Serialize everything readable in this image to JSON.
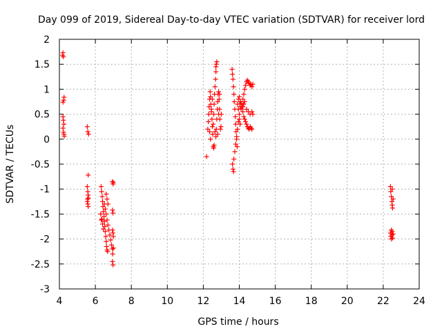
{
  "chart_data": {
    "type": "scatter",
    "title": "Day 099 of 2019, Sidereal Day-to-day VTEC variation (SDTVAR) for receiver lord",
    "xlabel": "GPS time / hours",
    "ylabel": "SDTVAR / TECUs",
    "xlim": [
      4,
      24
    ],
    "ylim": [
      -3,
      2
    ],
    "xticks": [
      "4",
      "6",
      "8",
      "10",
      "12",
      "14",
      "16",
      "18",
      "20",
      "22",
      "24"
    ],
    "yticks": [
      "2",
      "1.5",
      "1",
      "0.5",
      "0",
      "-0.5",
      "-1",
      "-1.5",
      "-2",
      "-2.5",
      "-3"
    ],
    "grid": true,
    "marker": "+",
    "marker_color": "#ff0000",
    "series": [
      {
        "name": "SDTVAR",
        "points": [
          [
            4.18,
            1.68
          ],
          [
            4.2,
            1.73
          ],
          [
            4.22,
            1.65
          ],
          [
            4.2,
            0.74
          ],
          [
            4.24,
            0.78
          ],
          [
            4.26,
            0.84
          ],
          [
            4.2,
            0.45
          ],
          [
            4.22,
            0.38
          ],
          [
            4.25,
            0.3
          ],
          [
            4.2,
            0.22
          ],
          [
            4.23,
            0.14
          ],
          [
            4.25,
            0.1
          ],
          [
            4.27,
            0.06
          ],
          [
            5.55,
            0.25
          ],
          [
            5.58,
            0.15
          ],
          [
            5.62,
            0.1
          ],
          [
            5.6,
            -0.72
          ],
          [
            5.55,
            -0.95
          ],
          [
            5.58,
            -1.05
          ],
          [
            5.6,
            -1.12
          ],
          [
            5.62,
            -1.18
          ],
          [
            5.55,
            -1.25
          ],
          [
            5.58,
            -1.3
          ],
          [
            5.6,
            -1.35
          ],
          [
            5.56,
            -1.2
          ],
          [
            6.32,
            -0.95
          ],
          [
            6.35,
            -1.05
          ],
          [
            6.38,
            -1.15
          ],
          [
            6.4,
            -1.25
          ],
          [
            6.42,
            -1.35
          ],
          [
            6.45,
            -1.45
          ],
          [
            6.48,
            -1.55
          ],
          [
            6.5,
            -1.65
          ],
          [
            6.52,
            -1.75
          ],
          [
            6.55,
            -1.85
          ],
          [
            6.58,
            -1.95
          ],
          [
            6.6,
            -2.05
          ],
          [
            6.62,
            -2.15
          ],
          [
            6.65,
            -2.22
          ],
          [
            6.68,
            -2.25
          ],
          [
            6.36,
            -1.6
          ],
          [
            6.4,
            -1.7
          ],
          [
            6.44,
            -1.8
          ],
          [
            6.5,
            -1.3
          ],
          [
            6.55,
            -1.4
          ],
          [
            6.6,
            -1.5
          ],
          [
            6.65,
            -1.62
          ],
          [
            6.7,
            -1.72
          ],
          [
            6.75,
            -1.82
          ],
          [
            6.8,
            -1.92
          ],
          [
            6.85,
            -2.02
          ],
          [
            6.9,
            -2.12
          ],
          [
            6.95,
            -2.2
          ],
          [
            7.0,
            -2.18
          ],
          [
            6.6,
            -1.1
          ],
          [
            6.65,
            -1.2
          ],
          [
            6.7,
            -1.3
          ],
          [
            6.3,
            -1.5
          ],
          [
            6.33,
            -1.62
          ],
          [
            6.95,
            -0.85
          ],
          [
            6.98,
            -0.9
          ],
          [
            7.0,
            -0.87
          ],
          [
            6.95,
            -1.42
          ],
          [
            6.98,
            -1.48
          ],
          [
            6.95,
            -1.82
          ],
          [
            6.98,
            -1.88
          ],
          [
            7.0,
            -1.95
          ],
          [
            6.95,
            -2.45
          ],
          [
            6.98,
            -2.52
          ],
          [
            6.96,
            -2.3
          ],
          [
            12.18,
            -0.35
          ],
          [
            12.25,
            0.2
          ],
          [
            12.28,
            0.35
          ],
          [
            12.3,
            0.5
          ],
          [
            12.32,
            0.65
          ],
          [
            12.35,
            0.8
          ],
          [
            12.38,
            0.95
          ],
          [
            12.4,
            0.85
          ],
          [
            12.42,
            0.7
          ],
          [
            12.45,
            0.55
          ],
          [
            12.48,
            0.4
          ],
          [
            12.5,
            0.25
          ],
          [
            12.52,
            0.1
          ],
          [
            12.55,
            -0.15
          ],
          [
            12.58,
            -0.18
          ],
          [
            12.6,
            -0.12
          ],
          [
            12.55,
            0.3
          ],
          [
            12.58,
            0.5
          ],
          [
            12.6,
            0.7
          ],
          [
            12.62,
            0.9
          ],
          [
            12.65,
            1.05
          ],
          [
            12.68,
            1.2
          ],
          [
            12.7,
            1.35
          ],
          [
            12.72,
            1.5
          ],
          [
            12.75,
            1.55
          ],
          [
            12.7,
            1.45
          ],
          [
            12.72,
            0.2
          ],
          [
            12.75,
            0.4
          ],
          [
            12.78,
            0.6
          ],
          [
            12.8,
            0.75
          ],
          [
            12.82,
            0.9
          ],
          [
            12.85,
            0.95
          ],
          [
            12.88,
            0.8
          ],
          [
            12.9,
            0.6
          ],
          [
            12.92,
            0.4
          ],
          [
            12.95,
            0.2
          ],
          [
            12.98,
            0.25
          ],
          [
            13.0,
            0.5
          ],
          [
            12.65,
            0.15
          ],
          [
            12.7,
            0.05
          ],
          [
            12.8,
            0.1
          ],
          [
            12.35,
            0.15
          ],
          [
            12.4,
            0.0
          ],
          [
            12.45,
            0.6
          ],
          [
            12.5,
            0.8
          ],
          [
            12.85,
            0.5
          ],
          [
            12.9,
            0.9
          ],
          [
            13.6,
            1.4
          ],
          [
            13.62,
            1.3
          ],
          [
            13.65,
            1.2
          ],
          [
            13.68,
            1.05
          ],
          [
            13.7,
            0.9
          ],
          [
            13.72,
            0.75
          ],
          [
            13.75,
            0.6
          ],
          [
            13.78,
            0.45
          ],
          [
            13.8,
            0.3
          ],
          [
            13.82,
            0.15
          ],
          [
            13.85,
            0.0
          ],
          [
            13.88,
            -0.15
          ],
          [
            13.62,
            -0.5
          ],
          [
            13.65,
            -0.6
          ],
          [
            13.68,
            -0.65
          ],
          [
            13.7,
            -0.4
          ],
          [
            13.75,
            -0.25
          ],
          [
            13.8,
            -0.1
          ],
          [
            13.85,
            0.05
          ],
          [
            13.9,
            0.2
          ],
          [
            13.95,
            0.35
          ],
          [
            14.0,
            0.5
          ],
          [
            14.05,
            0.65
          ],
          [
            14.1,
            0.72
          ],
          [
            14.15,
            0.65
          ],
          [
            14.2,
            0.55
          ],
          [
            14.25,
            0.45
          ],
          [
            14.3,
            0.4
          ],
          [
            14.35,
            0.35
          ],
          [
            14.4,
            0.3
          ],
          [
            14.45,
            0.25
          ],
          [
            14.5,
            0.22
          ],
          [
            14.55,
            0.2
          ],
          [
            14.6,
            0.25
          ],
          [
            14.65,
            0.22
          ],
          [
            14.7,
            0.2
          ],
          [
            14.2,
            0.8
          ],
          [
            14.25,
            0.9
          ],
          [
            14.3,
            1.0
          ],
          [
            14.35,
            1.08
          ],
          [
            14.4,
            1.15
          ],
          [
            14.45,
            1.18
          ],
          [
            14.5,
            1.15
          ],
          [
            14.55,
            1.12
          ],
          [
            14.6,
            1.08
          ],
          [
            14.65,
            1.1
          ],
          [
            14.7,
            1.05
          ],
          [
            14.75,
            1.1
          ],
          [
            14.2,
            0.65
          ],
          [
            14.25,
            0.7
          ],
          [
            14.3,
            0.75
          ],
          [
            14.4,
            0.6
          ],
          [
            14.5,
            0.55
          ],
          [
            14.6,
            0.5
          ],
          [
            14.7,
            0.55
          ],
          [
            14.75,
            0.5
          ],
          [
            13.9,
            0.7
          ],
          [
            13.95,
            0.8
          ],
          [
            14.0,
            0.85
          ],
          [
            14.05,
            0.75
          ],
          [
            14.1,
            0.6
          ],
          [
            13.95,
            0.6
          ],
          [
            14.0,
            0.4
          ],
          [
            14.05,
            0.3
          ],
          [
            22.4,
            -0.95
          ],
          [
            22.42,
            -1.05
          ],
          [
            22.45,
            -1.15
          ],
          [
            22.48,
            -1.25
          ],
          [
            22.5,
            -1.32
          ],
          [
            22.52,
            -1.38
          ],
          [
            22.55,
            -1.2
          ],
          [
            22.5,
            -1.0
          ],
          [
            22.4,
            -1.88
          ],
          [
            22.42,
            -1.95
          ],
          [
            22.45,
            -2.0
          ],
          [
            22.48,
            -1.92
          ],
          [
            22.5,
            -1.85
          ],
          [
            22.52,
            -1.98
          ],
          [
            22.55,
            -1.9
          ],
          [
            22.45,
            -1.82
          ]
        ]
      }
    ]
  }
}
